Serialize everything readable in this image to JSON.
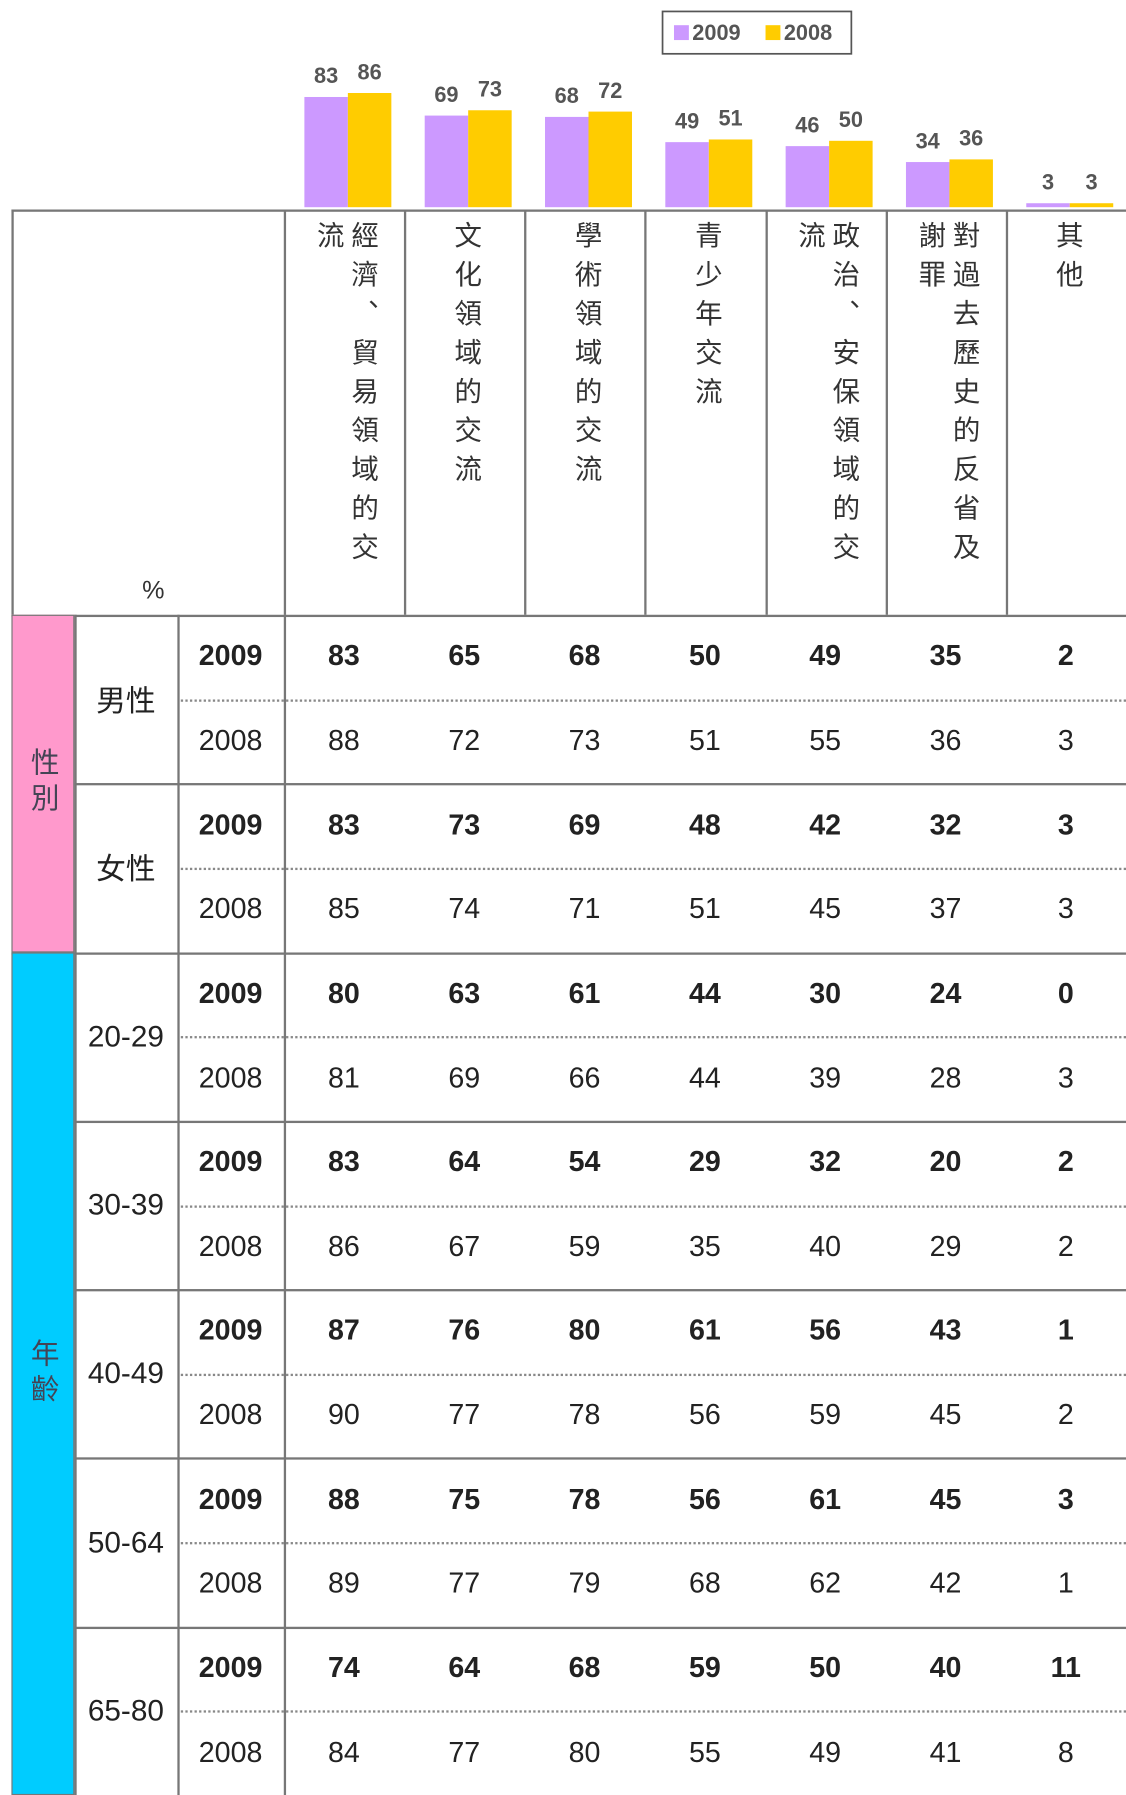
{
  "chart_data": {
    "type": "bar",
    "categories": [
      "經濟、貿易領域的交流",
      "文化領域的交流",
      "學術領域的交流",
      "青少年交流",
      "政治、安保領域的交流",
      "對過去歷史的反省及謝罪",
      "其他"
    ],
    "series": [
      {
        "name": "2009",
        "color": "#cc99ff",
        "values": [
          83,
          69,
          68,
          49,
          46,
          34,
          3
        ]
      },
      {
        "name": "2008",
        "color": "#ffcc00",
        "values": [
          86,
          73,
          72,
          51,
          50,
          36,
          3
        ]
      }
    ]
  },
  "table": {
    "unit": "%",
    "groups": [
      {
        "label": "性別",
        "color": "#ff99cc",
        "subgroups": [
          {
            "label": "男性",
            "rows": [
              {
                "year": "2009",
                "values": [
                  83,
                  65,
                  68,
                  50,
                  49,
                  35,
                  2
                ]
              },
              {
                "year": "2008",
                "values": [
                  88,
                  72,
                  73,
                  51,
                  55,
                  36,
                  3
                ]
              }
            ]
          },
          {
            "label": "女性",
            "rows": [
              {
                "year": "2009",
                "values": [
                  83,
                  73,
                  69,
                  48,
                  42,
                  32,
                  3
                ]
              },
              {
                "year": "2008",
                "values": [
                  85,
                  74,
                  71,
                  51,
                  45,
                  37,
                  3
                ]
              }
            ]
          }
        ]
      },
      {
        "label": "年齡",
        "color": "#00ccff",
        "subgroups": [
          {
            "label": "20-29",
            "rows": [
              {
                "year": "2009",
                "values": [
                  80,
                  63,
                  61,
                  44,
                  30,
                  24,
                  0
                ]
              },
              {
                "year": "2008",
                "values": [
                  81,
                  69,
                  66,
                  44,
                  39,
                  28,
                  3
                ]
              }
            ]
          },
          {
            "label": "30-39",
            "rows": [
              {
                "year": "2009",
                "values": [
                  83,
                  64,
                  54,
                  29,
                  32,
                  20,
                  2
                ]
              },
              {
                "year": "2008",
                "values": [
                  86,
                  67,
                  59,
                  35,
                  40,
                  29,
                  2
                ]
              }
            ]
          },
          {
            "label": "40-49",
            "rows": [
              {
                "year": "2009",
                "values": [
                  87,
                  76,
                  80,
                  61,
                  56,
                  43,
                  1
                ]
              },
              {
                "year": "2008",
                "values": [
                  90,
                  77,
                  78,
                  56,
                  59,
                  45,
                  2
                ]
              }
            ]
          },
          {
            "label": "50-64",
            "rows": [
              {
                "year": "2009",
                "values": [
                  88,
                  75,
                  78,
                  56,
                  61,
                  45,
                  3
                ]
              },
              {
                "year": "2008",
                "values": [
                  89,
                  77,
                  79,
                  68,
                  62,
                  42,
                  1
                ]
              }
            ]
          },
          {
            "label": "65-80",
            "rows": [
              {
                "year": "2009",
                "values": [
                  74,
                  64,
                  68,
                  59,
                  50,
                  40,
                  11
                ]
              },
              {
                "year": "2008",
                "values": [
                  84,
                  77,
                  80,
                  55,
                  49,
                  41,
                  8
                ]
              }
            ]
          }
        ]
      }
    ]
  }
}
